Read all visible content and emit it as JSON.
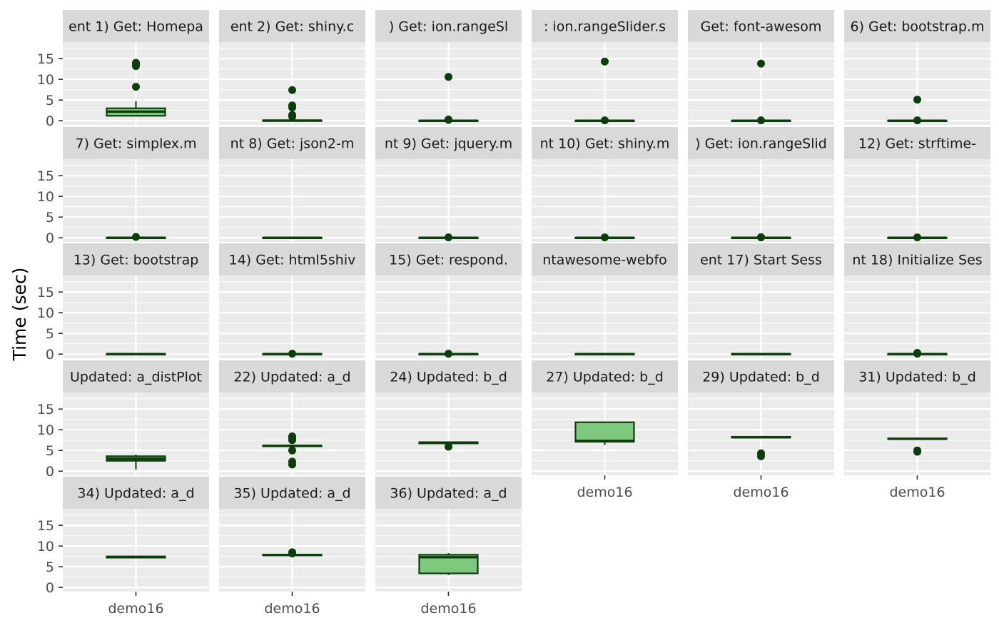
{
  "chart_data": {
    "type": "box",
    "ylabel": "Time (sec)",
    "xlabel": "",
    "ylim": [
      -1,
      19
    ],
    "yticks": [
      0,
      5,
      10,
      15
    ],
    "ncol": 6,
    "colors": {
      "box_fill": "#7fc97f",
      "box_line": "#0d3d0d",
      "panel_bg": "#ebebeb",
      "strip_bg": "#d9d9d9",
      "grid": "#ffffff"
    },
    "panels": [
      {
        "title": "ent 1) Get: Homepa",
        "category": "demo16",
        "box": {
          "q1": 1.2,
          "median": 2.2,
          "q3": 3.0,
          "whisker_low": 1.0,
          "whisker_high": 4.7
        },
        "outliers": [
          8.2,
          13.2,
          13.7,
          14.0
        ]
      },
      {
        "title": "ent 2) Get: shiny.c",
        "category": "demo16",
        "box": {
          "q1": 0.0,
          "median": 0.05,
          "q3": 0.1,
          "whisker_low": 0.0,
          "whisker_high": 0.15
        },
        "outliers": [
          1.0,
          1.4,
          3.2,
          3.7,
          7.4
        ]
      },
      {
        "title": ") Get: ion.rangeSl",
        "category": "demo16",
        "box": {
          "q1": 0.0,
          "median": 0.0,
          "q3": 0.05,
          "whisker_low": 0.0,
          "whisker_high": 0.05
        },
        "outliers": [
          0.2,
          0.3,
          10.6
        ]
      },
      {
        "title": ": ion.rangeSlider.s",
        "category": "demo16",
        "box": {
          "q1": 0.0,
          "median": 0.0,
          "q3": 0.05,
          "whisker_low": 0.0,
          "whisker_high": 0.05
        },
        "outliers": [
          0.1,
          14.3
        ]
      },
      {
        "title": "Get: font-awesom",
        "category": "demo16",
        "box": {
          "q1": 0.0,
          "median": 0.0,
          "q3": 0.05,
          "whisker_low": 0.0,
          "whisker_high": 0.05
        },
        "outliers": [
          0.1,
          13.8
        ]
      },
      {
        "title": "6) Get: bootstrap.m",
        "category": "demo16",
        "box": {
          "q1": 0.0,
          "median": 0.0,
          "q3": 0.05,
          "whisker_low": 0.0,
          "whisker_high": 0.05
        },
        "outliers": [
          0.1,
          5.1
        ]
      },
      {
        "title": "7) Get: simplex.m",
        "category": "demo16",
        "box": {
          "q1": 0.0,
          "median": 0.0,
          "q3": 0.05,
          "whisker_low": 0.0,
          "whisker_high": 0.05
        },
        "outliers": [
          0.2
        ]
      },
      {
        "title": "nt 8) Get: json2-m",
        "category": "demo16",
        "box": {
          "q1": 0.0,
          "median": 0.0,
          "q3": 0.05,
          "whisker_low": 0.0,
          "whisker_high": 0.05
        },
        "outliers": []
      },
      {
        "title": "nt 9) Get: jquery.m",
        "category": "demo16",
        "box": {
          "q1": 0.0,
          "median": 0.0,
          "q3": 0.05,
          "whisker_low": 0.0,
          "whisker_high": 0.05
        },
        "outliers": [
          0.1
        ]
      },
      {
        "title": "nt 10) Get: shiny.m",
        "category": "demo16",
        "box": {
          "q1": 0.0,
          "median": 0.0,
          "q3": 0.05,
          "whisker_low": 0.0,
          "whisker_high": 0.05
        },
        "outliers": [
          0.1
        ]
      },
      {
        "title": ") Get: ion.rangeSlid",
        "category": "demo16",
        "box": {
          "q1": 0.0,
          "median": 0.0,
          "q3": 0.05,
          "whisker_low": 0.0,
          "whisker_high": 0.05
        },
        "outliers": [
          0.1,
          0.15
        ]
      },
      {
        "title": "12) Get: strftime-",
        "category": "demo16",
        "box": {
          "q1": 0.0,
          "median": 0.0,
          "q3": 0.05,
          "whisker_low": 0.0,
          "whisker_high": 0.05
        },
        "outliers": [
          0.1
        ]
      },
      {
        "title": "13) Get: bootstrap",
        "category": "demo16",
        "box": {
          "q1": 0.0,
          "median": 0.0,
          "q3": 0.05,
          "whisker_low": 0.0,
          "whisker_high": 0.05
        },
        "outliers": []
      },
      {
        "title": "14) Get: html5shiv",
        "category": "demo16",
        "box": {
          "q1": 0.0,
          "median": 0.0,
          "q3": 0.05,
          "whisker_low": 0.0,
          "whisker_high": 0.05
        },
        "outliers": [
          0.1
        ]
      },
      {
        "title": "15) Get: respond.",
        "category": "demo16",
        "box": {
          "q1": 0.0,
          "median": 0.0,
          "q3": 0.05,
          "whisker_low": 0.0,
          "whisker_high": 0.05
        },
        "outliers": [
          0.1
        ]
      },
      {
        "title": "ntawesome-webfo",
        "category": "demo16",
        "box": {
          "q1": 0.0,
          "median": 0.0,
          "q3": 0.05,
          "whisker_low": 0.0,
          "whisker_high": 0.05
        },
        "outliers": []
      },
      {
        "title": "ent 17) Start Sess",
        "category": "demo16",
        "box": {
          "q1": 0.0,
          "median": 0.0,
          "q3": 0.05,
          "whisker_low": 0.0,
          "whisker_high": 0.05
        },
        "outliers": []
      },
      {
        "title": "nt 18) Initialize Ses",
        "category": "demo16",
        "box": {
          "q1": 0.0,
          "median": 0.0,
          "q3": 0.05,
          "whisker_low": 0.0,
          "whisker_high": 0.05
        },
        "outliers": [
          0.1,
          0.3
        ]
      },
      {
        "title": "Updated: a_distPlot",
        "category": "demo16",
        "box": {
          "q1": 2.5,
          "median": 3.0,
          "q3": 3.6,
          "whisker_low": 0.4,
          "whisker_high": 4.0
        },
        "outliers": []
      },
      {
        "title": "22) Updated: a_d",
        "category": "demo16",
        "box": {
          "q1": 6.0,
          "median": 6.1,
          "q3": 6.2,
          "whisker_low": 5.9,
          "whisker_high": 6.3
        },
        "outliers": [
          1.6,
          2.3,
          5.0,
          7.5,
          8.0,
          8.4
        ]
      },
      {
        "title": "24) Updated: b_d",
        "category": "demo16",
        "box": {
          "q1": 6.7,
          "median": 6.85,
          "q3": 7.0,
          "whisker_low": 6.6,
          "whisker_high": 7.1
        },
        "outliers": [
          5.9
        ]
      },
      {
        "title": "27) Updated: b_d",
        "category": "demo16",
        "box": {
          "q1": 7.1,
          "median": 7.3,
          "q3": 11.8,
          "whisker_low": 6.3,
          "whisker_high": 12.0
        },
        "outliers": []
      },
      {
        "title": "29) Updated: b_d",
        "category": "demo16",
        "box": {
          "q1": 8.1,
          "median": 8.2,
          "q3": 8.3,
          "whisker_low": 8.0,
          "whisker_high": 8.4
        },
        "outliers": [
          3.6,
          4.3
        ]
      },
      {
        "title": "31) Updated: b_d",
        "category": "demo16",
        "box": {
          "q1": 7.75,
          "median": 7.8,
          "q3": 7.9,
          "whisker_low": 7.7,
          "whisker_high": 7.95
        },
        "outliers": [
          4.7,
          5.0
        ]
      },
      {
        "title": "34) Updated: a_d",
        "category": "demo16",
        "box": {
          "q1": 7.2,
          "median": 7.3,
          "q3": 7.5,
          "whisker_low": 7.0,
          "whisker_high": 7.6
        },
        "outliers": []
      },
      {
        "title": "35) Updated: a_d",
        "category": "demo16",
        "box": {
          "q1": 7.75,
          "median": 7.85,
          "q3": 7.95,
          "whisker_low": 7.7,
          "whisker_high": 8.0
        },
        "outliers": [
          8.2,
          8.5
        ]
      },
      {
        "title": "36) Updated: a_d",
        "category": "demo16",
        "box": {
          "q1": 3.4,
          "median": 7.3,
          "q3": 7.9,
          "whisker_low": 3.0,
          "whisker_high": 8.3
        },
        "outliers": []
      }
    ]
  }
}
